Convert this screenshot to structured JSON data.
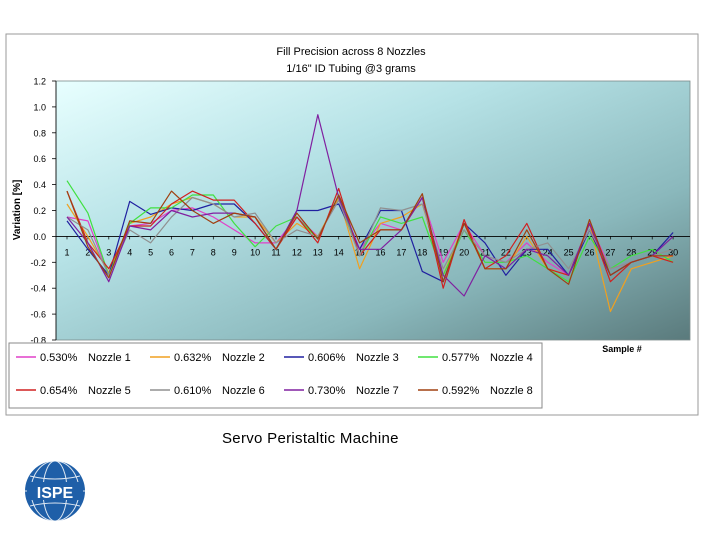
{
  "chart_data": {
    "type": "line",
    "title": "Fill Precision across 8 Nozzles",
    "subtitle": "1/16\" ID Tubing @3 grams",
    "xlabel": "Sample #",
    "ylabel": "Variation [%]",
    "ylim": [
      -0.8,
      1.2
    ],
    "yticks": [
      1.2,
      1.0,
      0.8,
      0.6,
      0.4,
      0.2,
      0.0,
      -0.2,
      -0.4,
      -0.6,
      -0.8
    ],
    "ytick_labels": [
      "1.2",
      "1.0",
      "0.8",
      "0.6",
      "0.4",
      "0.2",
      "0.0",
      "-0.2",
      "-0.4",
      "-0.6",
      "-0.8"
    ],
    "x": [
      1,
      2,
      3,
      4,
      5,
      6,
      7,
      8,
      9,
      10,
      11,
      12,
      13,
      14,
      15,
      16,
      17,
      18,
      19,
      20,
      21,
      22,
      23,
      24,
      25,
      26,
      27,
      28,
      29,
      30
    ],
    "grid": false,
    "legend_position": "bottom",
    "series": [
      {
        "name": "Nozzle 1",
        "stat": "0.530%",
        "color": "#e040c8",
        "values": [
          0.15,
          0.12,
          -0.3,
          0.08,
          0.1,
          0.2,
          0.22,
          0.15,
          0.05,
          -0.05,
          -0.05,
          0.15,
          0.0,
          0.28,
          -0.1,
          0.1,
          0.05,
          0.3,
          -0.2,
          0.1,
          -0.15,
          -0.2,
          -0.05,
          -0.2,
          -0.3,
          0.1,
          -0.25,
          -0.2,
          -0.15,
          -0.15
        ]
      },
      {
        "name": "Nozzle 2",
        "stat": "0.632%",
        "color": "#f0a020",
        "values": [
          0.25,
          0.0,
          -0.28,
          0.1,
          0.15,
          0.25,
          0.3,
          0.25,
          0.15,
          0.15,
          -0.05,
          0.1,
          0.0,
          0.3,
          -0.25,
          0.1,
          0.15,
          0.25,
          -0.3,
          0.1,
          -0.25,
          -0.25,
          0.0,
          -0.25,
          -0.3,
          0.1,
          -0.58,
          -0.25,
          -0.2,
          -0.15
        ]
      },
      {
        "name": "Nozzle 3",
        "stat": "0.606%",
        "color": "#2020a0",
        "values": [
          0.12,
          -0.1,
          -0.3,
          0.27,
          0.17,
          0.22,
          0.2,
          0.25,
          0.25,
          0.1,
          -0.1,
          0.2,
          0.2,
          0.25,
          -0.1,
          0.2,
          0.2,
          -0.27,
          -0.35,
          0.1,
          -0.05,
          -0.3,
          -0.1,
          -0.1,
          -0.3,
          0.05,
          -0.3,
          -0.2,
          -0.15,
          0.03
        ]
      },
      {
        "name": "Nozzle 4",
        "stat": "0.577%",
        "color": "#40e040",
        "values": [
          0.43,
          0.18,
          -0.3,
          0.1,
          0.22,
          0.22,
          0.32,
          0.32,
          0.1,
          -0.08,
          0.08,
          0.15,
          -0.02,
          0.32,
          -0.15,
          0.15,
          0.1,
          0.15,
          -0.3,
          0.05,
          -0.2,
          -0.2,
          -0.15,
          -0.25,
          -0.35,
          0.0,
          -0.25,
          -0.15,
          -0.1,
          -0.2
        ]
      },
      {
        "name": "Nozzle 5",
        "stat": "0.654%",
        "color": "#d02020",
        "values": [
          0.35,
          -0.05,
          -0.25,
          0.08,
          0.08,
          0.25,
          0.35,
          0.28,
          0.28,
          0.1,
          -0.1,
          0.15,
          -0.05,
          0.37,
          -0.15,
          0.05,
          0.05,
          0.3,
          -0.4,
          0.13,
          -0.25,
          -0.15,
          0.1,
          -0.25,
          -0.3,
          0.1,
          -0.35,
          -0.2,
          -0.15,
          -0.2
        ]
      },
      {
        "name": "Nozzle 6",
        "stat": "0.610%",
        "color": "#909090",
        "values": [
          0.15,
          0.05,
          -0.3,
          0.05,
          -0.05,
          0.15,
          0.3,
          0.25,
          0.15,
          0.18,
          -0.05,
          0.05,
          0.0,
          0.28,
          -0.15,
          0.22,
          0.2,
          0.25,
          -0.25,
          0.05,
          -0.15,
          -0.2,
          -0.1,
          -0.05,
          -0.25,
          0.05,
          -0.25,
          -0.2,
          -0.15,
          -0.1
        ]
      },
      {
        "name": "Nozzle 7",
        "stat": "0.730%",
        "color": "#8020a0",
        "values": [
          0.15,
          -0.05,
          -0.35,
          0.08,
          0.05,
          0.2,
          0.15,
          0.18,
          0.18,
          0.15,
          -0.1,
          0.2,
          0.94,
          0.3,
          -0.1,
          -0.1,
          0.05,
          0.3,
          -0.3,
          -0.46,
          -0.15,
          -0.25,
          -0.1,
          -0.15,
          -0.3,
          0.1,
          -0.3,
          -0.2,
          -0.15,
          0.0
        ]
      },
      {
        "name": "Nozzle 8",
        "stat": "0.592%",
        "color": "#a04010",
        "values": [
          0.35,
          -0.08,
          -0.32,
          0.12,
          0.1,
          0.35,
          0.2,
          0.1,
          0.18,
          0.15,
          -0.1,
          0.18,
          -0.02,
          0.32,
          -0.05,
          0.05,
          0.05,
          0.33,
          -0.35,
          0.1,
          -0.25,
          -0.25,
          0.05,
          -0.25,
          -0.37,
          0.13,
          -0.3,
          -0.2,
          -0.15,
          -0.15
        ]
      }
    ]
  },
  "caption": "Servo Peristaltic Machine",
  "logo_text": "ISPE"
}
